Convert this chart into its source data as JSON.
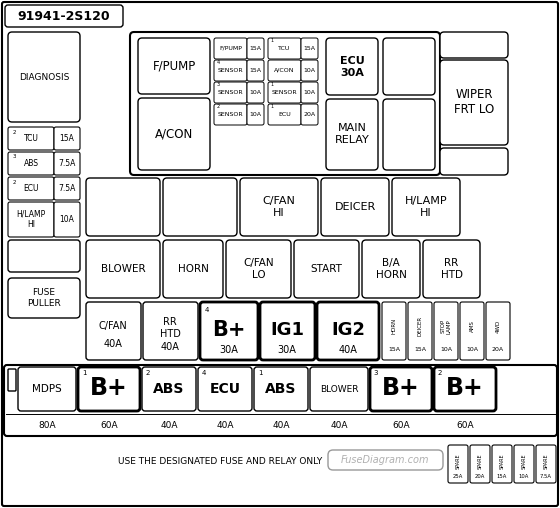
{
  "title": "91941-2S120",
  "bg_color": "#ffffff",
  "watermark": "FuseDiagram.com",
  "watermark_color": "#b0b0b0",
  "bottom_text": "USE THE DESIGNATED FUSE AND RELAY ONLY",
  "inner_grid": [
    [
      {
        "lbl": "F/PUMP",
        "sup": "",
        "amp": "15A"
      },
      {
        "lbl": "TCU",
        "sup": "1",
        "amp": "15A"
      }
    ],
    [
      {
        "lbl": "SENSOR",
        "sup": "4",
        "amp": "15A"
      },
      {
        "lbl": "A/CON",
        "sup": "",
        "amp": "10A"
      }
    ],
    [
      {
        "lbl": "SENSOR",
        "sup": "3",
        "amp": "10A"
      },
      {
        "lbl": "SENSOR",
        "sup": "1",
        "amp": "10A"
      }
    ],
    [
      {
        "lbl": "SENSOR",
        "sup": "2",
        "amp": "10A"
      },
      {
        "lbl": "ECU",
        "sup": "1",
        "amp": "20A"
      }
    ]
  ],
  "left_fuses": [
    {
      "lbl": "TCU",
      "sup": "2",
      "amp": "15A"
    },
    {
      "lbl": "ABS",
      "sup": "3",
      "amp": "7.5A"
    },
    {
      "lbl": "ECU",
      "sup": "2",
      "amp": "7.5A"
    },
    {
      "lbl": "H/LAMP\nHI",
      "sup": "",
      "amp": "10A"
    }
  ],
  "row4_small": [
    {
      "lbl": "HORN",
      "amp": "15A"
    },
    {
      "lbl": "DEICER",
      "amp": "15A"
    },
    {
      "lbl": "STOP\nLAMP",
      "amp": "10A"
    },
    {
      "lbl": "AMS",
      "amp": "10A"
    },
    {
      "lbl": "4WD",
      "amp": "20A"
    }
  ],
  "spare_fuses": [
    {
      "lbl": "SPARE",
      "amp": "25A"
    },
    {
      "lbl": "SPARE",
      "amp": "20A"
    },
    {
      "lbl": "SPARE",
      "amp": "15A"
    },
    {
      "lbl": "SPARE",
      "amp": "10A"
    },
    {
      "lbl": "SPARE",
      "amp": "7.5A"
    }
  ]
}
